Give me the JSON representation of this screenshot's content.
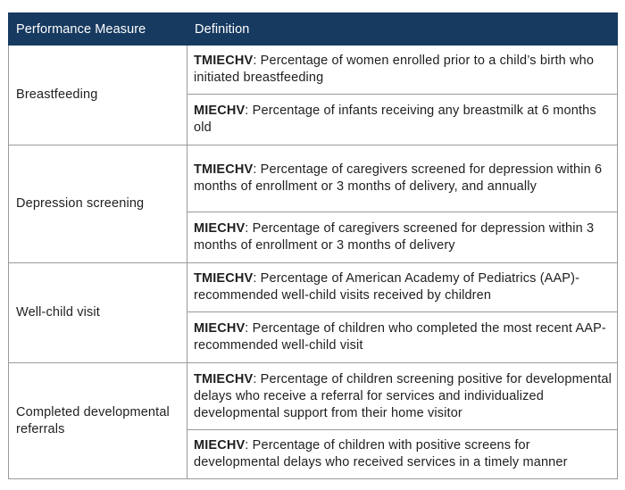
{
  "table": {
    "headers": {
      "measure": "Performance Measure",
      "definition": "Definition"
    },
    "rows": [
      {
        "measure": "Breastfeeding",
        "definitions": [
          {
            "program": "TMIECHV",
            "text": ": Percentage of women enrolled prior to a child’s birth who initiated breastfeeding"
          },
          {
            "program": "MIECHV",
            "text": ": Percentage of infants receiving any breastmilk at 6 months old"
          }
        ]
      },
      {
        "measure": "Depression screening",
        "definitions": [
          {
            "program": "TMIECHV",
            "text": ": Percentage of caregivers screened for depression within 6 months of enrollment or 3 months of delivery, and annually"
          },
          {
            "program": "MIECHV",
            "text": ": Percentage of caregivers screened for depression within 3 months of enrollment or 3 months of delivery"
          }
        ]
      },
      {
        "measure": "Well-child visit",
        "definitions": [
          {
            "program": "TMIECHV",
            "text": ": Percentage of American Academy of Pediatrics (AAP)-recommended well-child visits received by children"
          },
          {
            "program": "MIECHV",
            "text": ": Percentage of children who completed the most recent AAP-recommended well-child visit"
          }
        ]
      },
      {
        "measure": "Completed developmental referrals",
        "definitions": [
          {
            "program": "TMIECHV",
            "text": ": Percentage of children screening positive for developmental delays who receive a referral for services and individualized developmental support from their home visitor"
          },
          {
            "program": "MIECHV",
            "text": ": Percentage of children with positive screens for developmental delays who received services in a timely manner"
          }
        ]
      }
    ]
  },
  "colors": {
    "header_background": "#173a60",
    "header_text": "#ffffff",
    "border": "#9a9a9a"
  }
}
